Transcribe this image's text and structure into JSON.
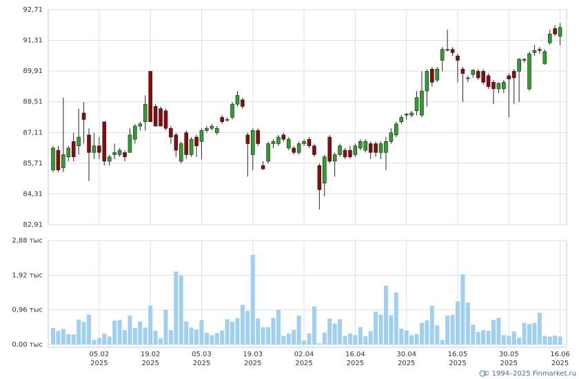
{
  "chart_data": {
    "type": "candlestick",
    "categories": [
      null,
      null,
      null,
      null,
      null,
      null,
      null,
      null,
      null,
      "05.02",
      null,
      null,
      null,
      null,
      null,
      null,
      null,
      null,
      null,
      "19.02",
      null,
      null,
      null,
      null,
      null,
      null,
      null,
      null,
      null,
      "05.03",
      null,
      null,
      null,
      null,
      null,
      null,
      null,
      null,
      null,
      "19.03",
      null,
      null,
      null,
      null,
      null,
      null,
      null,
      null,
      null,
      "02.04",
      null,
      null,
      null,
      null,
      null,
      null,
      null,
      null,
      null,
      "16.04",
      null,
      null,
      null,
      null,
      null,
      null,
      null,
      null,
      null,
      "30.04",
      null,
      null,
      null,
      null,
      null,
      null,
      null,
      null,
      null,
      "16.05",
      null,
      null,
      null,
      null,
      null,
      null,
      null,
      null,
      null,
      "30.05",
      null,
      null,
      null,
      null,
      null,
      null,
      null,
      null,
      null,
      "16.06"
    ],
    "year_label": "2025",
    "ohlc": [
      [
        85.4,
        86.5,
        85.3,
        86.4
      ],
      [
        86.3,
        86.5,
        85.3,
        85.4
      ],
      [
        85.5,
        88.7,
        85.3,
        86.1
      ],
      [
        86.0,
        86.5,
        85.8,
        86.4
      ],
      [
        86.7,
        87.1,
        85.8,
        86.0
      ],
      [
        86.5,
        88.2,
        86.1,
        86.9
      ],
      [
        88.0,
        88.5,
        86.6,
        87.7
      ],
      [
        87.0,
        87.3,
        84.9,
        86.2
      ],
      [
        86.2,
        87.1,
        85.9,
        86.5
      ],
      [
        86.5,
        86.9,
        85.9,
        86.2
      ],
      [
        87.6,
        87.6,
        85.6,
        85.8
      ],
      [
        85.8,
        86.1,
        85.6,
        86.0
      ],
      [
        86.1,
        86.6,
        85.9,
        86.2
      ],
      [
        86.1,
        86.4,
        86.0,
        86.3
      ],
      [
        86.2,
        86.3,
        85.8,
        86.0
      ],
      [
        86.2,
        87.3,
        86.2,
        87.0
      ],
      [
        86.8,
        87.5,
        86.6,
        87.4
      ],
      [
        87.4,
        87.6,
        87.2,
        87.5
      ],
      [
        87.6,
        88.8,
        87.2,
        88.4
      ],
      [
        89.9,
        89.9,
        87.6,
        87.6
      ],
      [
        88.3,
        88.4,
        87.4,
        87.4
      ],
      [
        88.2,
        88.3,
        87.4,
        87.4
      ],
      [
        88.1,
        88.2,
        87.2,
        87.3
      ],
      [
        87.3,
        87.4,
        86.6,
        86.9
      ],
      [
        87.0,
        87.1,
        86.0,
        86.3
      ],
      [
        85.8,
        86.7,
        85.7,
        86.6
      ],
      [
        87.1,
        87.2,
        85.9,
        86.1
      ],
      [
        86.1,
        86.9,
        86.0,
        86.8
      ],
      [
        86.9,
        87.0,
        86.0,
        86.5
      ],
      [
        86.7,
        87.3,
        85.9,
        87.2
      ],
      [
        87.2,
        87.4,
        87.1,
        87.3
      ],
      [
        87.3,
        87.5,
        87.2,
        87.4
      ],
      [
        87.1,
        87.4,
        87.0,
        87.3
      ],
      [
        87.8,
        87.9,
        87.5,
        87.6
      ],
      [
        87.7,
        87.8,
        87.6,
        87.7
      ],
      [
        87.8,
        88.5,
        87.7,
        88.4
      ],
      [
        88.4,
        89.0,
        88.3,
        88.8
      ],
      [
        88.6,
        88.7,
        88.2,
        88.3
      ],
      [
        87.0,
        87.1,
        85.1,
        86.6
      ],
      [
        86.1,
        87.3,
        85.4,
        87.2
      ],
      [
        87.2,
        87.3,
        86.5,
        86.6
      ],
      [
        85.6,
        85.8,
        85.4,
        85.45
      ],
      [
        85.8,
        86.7,
        85.7,
        86.6
      ],
      [
        86.6,
        86.8,
        86.4,
        86.7
      ],
      [
        86.6,
        87.0,
        86.5,
        86.9
      ],
      [
        87.0,
        87.1,
        86.7,
        86.8
      ],
      [
        86.4,
        86.9,
        86.3,
        86.8
      ],
      [
        86.4,
        86.5,
        86.1,
        86.2
      ],
      [
        86.2,
        86.7,
        86.1,
        86.6
      ],
      [
        86.6,
        86.8,
        86.5,
        86.7
      ],
      [
        86.8,
        86.9,
        86.4,
        86.5
      ],
      [
        86.5,
        86.6,
        86.0,
        86.1
      ],
      [
        85.6,
        85.7,
        83.6,
        84.5
      ],
      [
        84.8,
        86.1,
        84.2,
        86.0
      ],
      [
        86.9,
        87.0,
        85.7,
        85.8
      ],
      [
        85.8,
        86.2,
        85.1,
        86.1
      ],
      [
        86.1,
        86.6,
        86.0,
        86.5
      ],
      [
        86.3,
        86.4,
        85.9,
        86.0
      ],
      [
        86.3,
        86.5,
        85.9,
        86.0
      ],
      [
        86.1,
        86.6,
        86.0,
        86.5
      ],
      [
        86.4,
        86.8,
        86.3,
        86.7
      ],
      [
        86.3,
        86.8,
        86.2,
        86.7
      ],
      [
        86.6,
        86.7,
        85.9,
        86.2
      ],
      [
        86.6,
        86.7,
        86.0,
        86.2
      ],
      [
        86.2,
        86.7,
        85.9,
        86.6
      ],
      [
        86.2,
        86.9,
        85.4,
        86.7
      ],
      [
        86.7,
        87.3,
        86.6,
        87.1
      ],
      [
        87.0,
        87.6,
        86.9,
        87.5
      ],
      [
        87.6,
        87.9,
        87.5,
        87.8
      ],
      [
        87.9,
        88.0,
        87.7,
        87.95
      ],
      [
        87.9,
        88.1,
        87.8,
        88.0
      ],
      [
        88.1,
        89.0,
        87.9,
        88.7
      ],
      [
        87.9,
        89.9,
        87.8,
        89.0
      ],
      [
        89.0,
        90.0,
        88.3,
        89.9
      ],
      [
        90.0,
        90.1,
        89.2,
        89.4
      ],
      [
        89.5,
        90.1,
        89.4,
        90.0
      ],
      [
        90.4,
        91.0,
        89.9,
        90.9
      ],
      [
        90.85,
        91.8,
        90.8,
        90.9
      ],
      [
        90.9,
        91.0,
        90.6,
        90.75
      ],
      [
        90.6,
        90.7,
        89.4,
        90.4
      ],
      [
        90.0,
        90.1,
        88.5,
        89.8
      ],
      [
        89.6,
        89.7,
        89.4,
        89.6
      ],
      [
        89.75,
        90.0,
        89.6,
        89.95
      ],
      [
        89.9,
        90.0,
        89.5,
        89.6
      ],
      [
        89.9,
        90.0,
        89.3,
        89.4
      ],
      [
        89.7,
        89.8,
        89.1,
        89.2
      ],
      [
        89.4,
        89.5,
        88.4,
        89.1
      ],
      [
        89.1,
        89.4,
        88.9,
        89.35
      ],
      [
        89.1,
        89.5,
        88.9,
        89.4
      ],
      [
        89.7,
        89.8,
        87.8,
        89.55
      ],
      [
        89.9,
        90.0,
        88.4,
        89.6
      ],
      [
        89.9,
        90.5,
        88.5,
        90.45
      ],
      [
        90.4,
        90.5,
        90.3,
        90.45
      ],
      [
        89.1,
        90.8,
        89.0,
        90.7
      ],
      [
        90.75,
        91.1,
        90.6,
        90.85
      ],
      [
        90.9,
        91.0,
        90.7,
        90.85
      ],
      [
        90.25,
        90.9,
        90.2,
        90.8
      ],
      [
        91.2,
        91.8,
        91.1,
        91.6
      ],
      [
        91.85,
        92.0,
        91.5,
        91.6
      ],
      [
        91.5,
        92.1,
        91.1,
        91.9
      ]
    ],
    "up_color": "#2ca02c",
    "down_color": "#8b0a0a",
    "ylim": [
      82.91,
      92.71
    ],
    "yticks": [
      {
        "value": 82.91,
        "label": "82,91"
      },
      {
        "value": 84.31,
        "label": "84,31"
      },
      {
        "value": 85.71,
        "label": "85,71"
      },
      {
        "value": 87.11,
        "label": "87,11"
      },
      {
        "value": 88.51,
        "label": "88,51"
      },
      {
        "value": 89.91,
        "label": "89,91"
      },
      {
        "value": 91.31,
        "label": "91,31"
      },
      {
        "value": 92.71,
        "label": "92,71"
      }
    ],
    "volume": [
      0.46,
      0.38,
      0.43,
      0.29,
      0.28,
      0.69,
      0.63,
      0.83,
      0.13,
      0.18,
      0.3,
      0.22,
      0.66,
      0.68,
      0.4,
      0.8,
      0.46,
      0.64,
      0.47,
      1.08,
      0.38,
      0.17,
      0.96,
      0.4,
      2.02,
      1.91,
      0.64,
      0.47,
      0.42,
      0.68,
      0.33,
      0.26,
      0.32,
      0.39,
      0.7,
      0.63,
      0.73,
      1.1,
      0.93,
      2.48,
      0.72,
      0.48,
      0.48,
      0.74,
      0.96,
      0.24,
      0.31,
      0.41,
      0.8,
      0.11,
      0.31,
      1.05,
      0.03,
      0.33,
      0.72,
      0.58,
      0.7,
      0.24,
      0.31,
      0.26,
      0.48,
      0.23,
      0.37,
      0.91,
      0.83,
      1.63,
      0.81,
      1.44,
      0.44,
      0.39,
      0.26,
      0.29,
      0.6,
      0.67,
      1.07,
      0.53,
      0.13,
      0.8,
      0.82,
      1.19,
      1.94,
      1.16,
      0.55,
      0.35,
      0.4,
      0.38,
      0.68,
      0.74,
      0.26,
      0.24,
      0.36,
      0.19,
      0.6,
      0.57,
      0.6,
      0.88,
      0.24,
      0.22,
      0.25,
      0.22
    ],
    "volume_color": "#9fd0f3",
    "volume_ylim": [
      0,
      2.88
    ],
    "volume_yticks": [
      {
        "value": 0,
        "label": "0,00 тыс"
      },
      {
        "value": 0.96,
        "label": "0,96 тыс"
      },
      {
        "value": 1.92,
        "label": "1,92 тыс"
      },
      {
        "value": 2.88,
        "label": "2,88 тыс"
      }
    ],
    "grid": true,
    "copyright": "© 1994–2025 Finmarket.ru"
  }
}
